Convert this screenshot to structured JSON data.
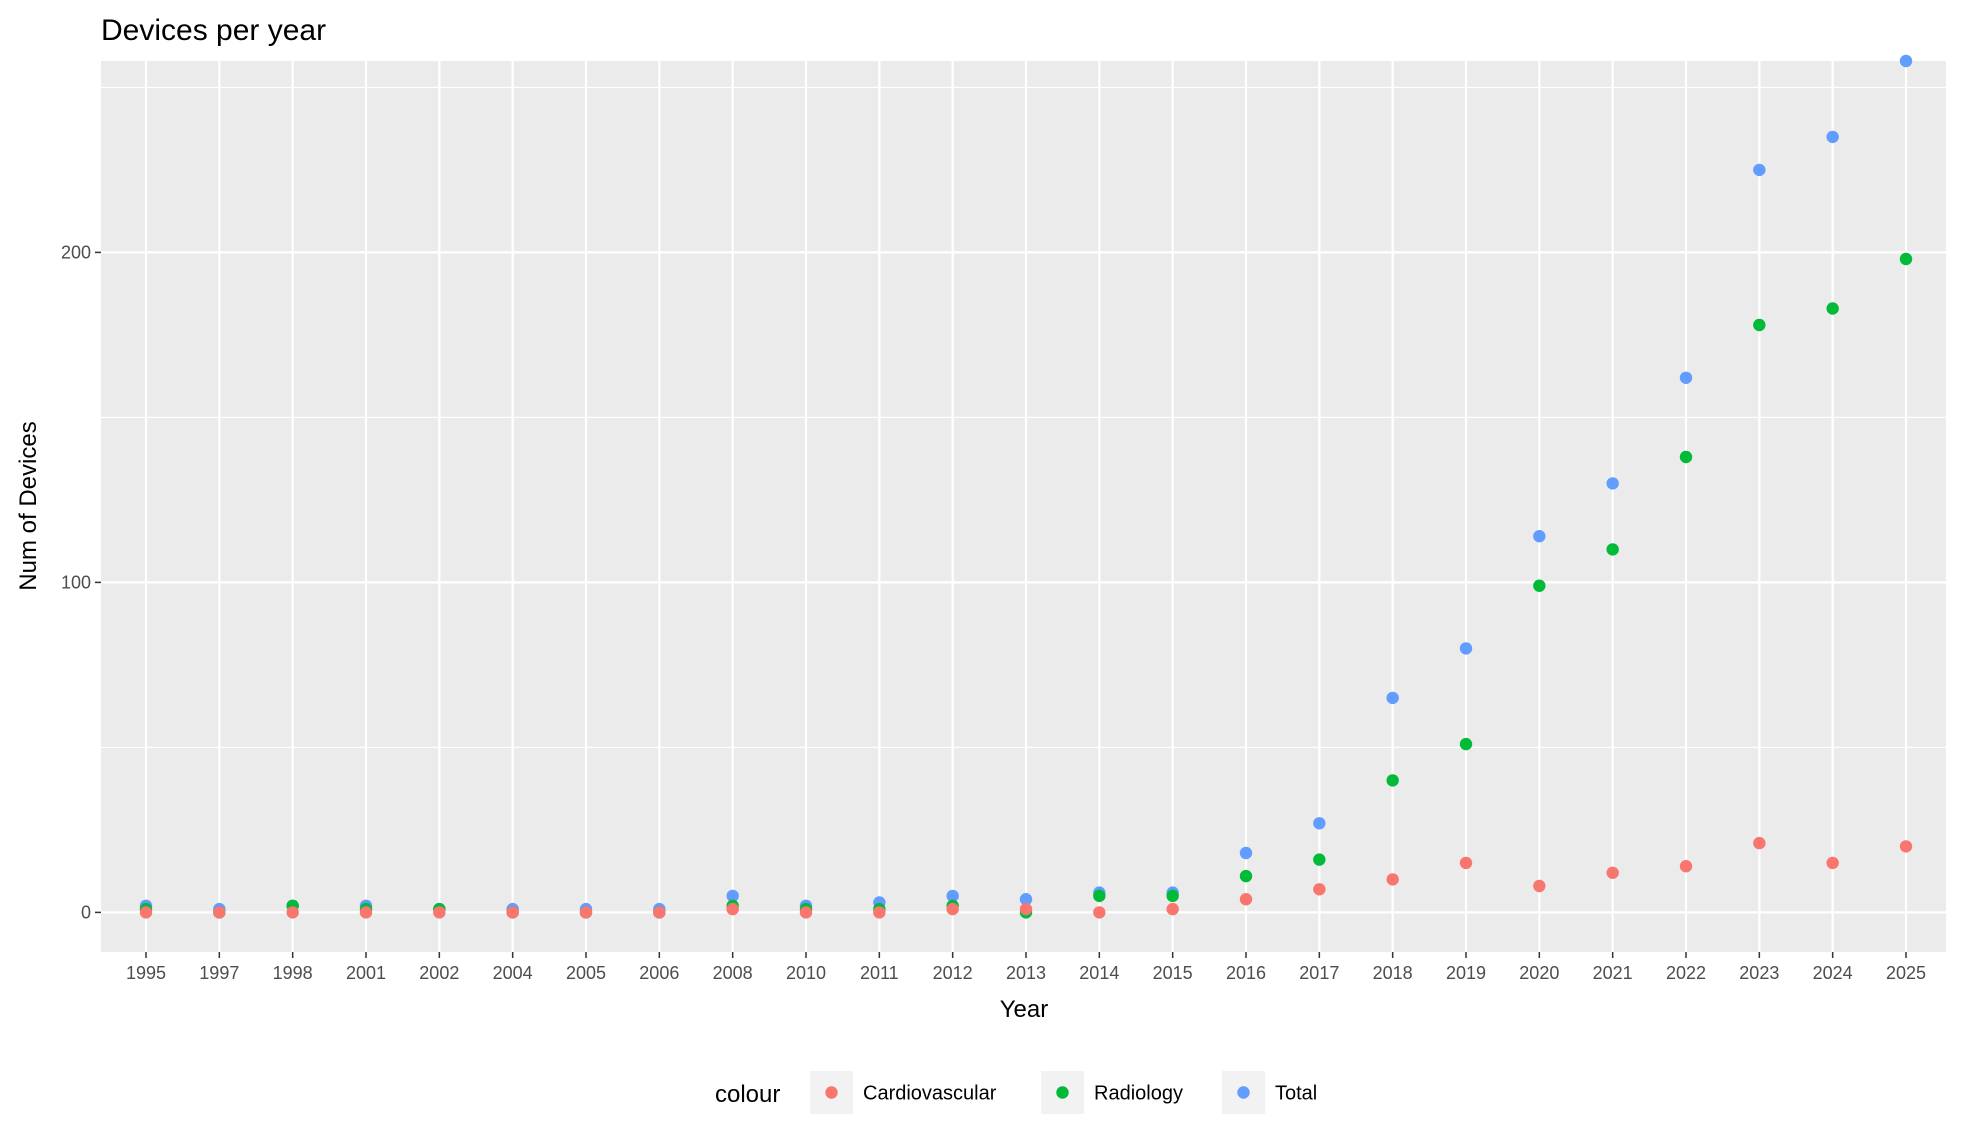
{
  "chart_data": {
    "type": "scatter",
    "title": "Devices per year",
    "xlabel": "Year",
    "ylabel": "Num of Devices",
    "categories": [
      "1995",
      "1997",
      "1998",
      "2001",
      "2002",
      "2004",
      "2005",
      "2006",
      "2008",
      "2010",
      "2011",
      "2012",
      "2013",
      "2014",
      "2015",
      "2016",
      "2017",
      "2018",
      "2019",
      "2020",
      "2021",
      "2022",
      "2023",
      "2024",
      "2025"
    ],
    "ylim": [
      -12,
      258
    ],
    "yticks": [
      0,
      100,
      200
    ],
    "legend_title": "colour",
    "legend_position": "bottom",
    "series": [
      {
        "name": "Cardiovascular",
        "color": "#F8766D",
        "values": [
          0,
          0,
          0,
          0,
          0,
          0,
          0,
          0,
          1,
          0,
          0,
          1,
          1,
          0,
          1,
          4,
          7,
          10,
          15,
          8,
          12,
          14,
          21,
          15,
          20
        ]
      },
      {
        "name": "Radiology",
        "color": "#00BA38",
        "values": [
          1,
          0,
          2,
          1,
          1,
          0,
          0,
          0,
          2,
          1,
          1,
          2,
          0,
          5,
          5,
          11,
          16,
          40,
          51,
          99,
          110,
          138,
          178,
          183,
          198
        ]
      },
      {
        "name": "Total",
        "color": "#619CFF",
        "values": [
          2,
          1,
          2,
          2,
          1,
          1,
          1,
          1,
          5,
          2,
          3,
          5,
          4,
          6,
          6,
          18,
          27,
          65,
          80,
          114,
          130,
          162,
          225,
          235,
          258
        ]
      }
    ]
  }
}
